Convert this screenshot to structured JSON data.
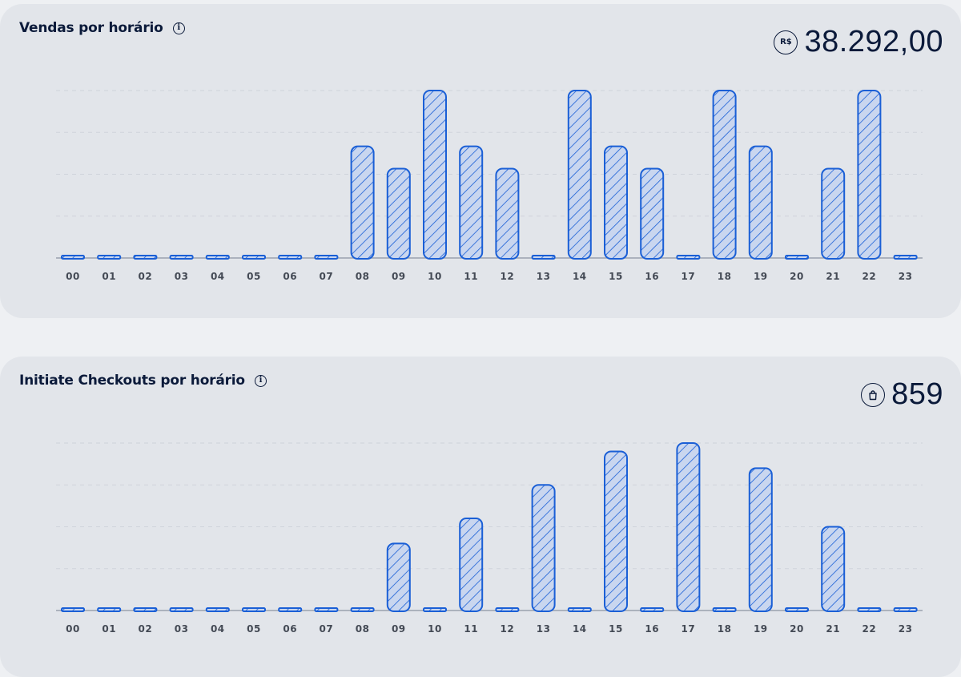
{
  "sales_card": {
    "title": "Vendas por horário",
    "info_icon": "info-icon",
    "currency_icon_label": "R$",
    "total": "38.292,00"
  },
  "checkouts_card": {
    "title": "Initiate Checkouts por horário",
    "info_icon": "info-icon",
    "total_icon": "shopping-bag-icon",
    "total": "859"
  },
  "colors": {
    "bar_stroke": "#1a5fd6",
    "bar_fill": "#c9d6ef",
    "axis": "#9aa2ae",
    "grid": "#cfd4db",
    "text_dark": "#0b1a3a",
    "tick_text": "#444a55"
  },
  "chart_data": [
    {
      "type": "bar",
      "categories": [
        "00",
        "01",
        "02",
        "03",
        "04",
        "05",
        "06",
        "07",
        "08",
        "09",
        "10",
        "11",
        "12",
        "13",
        "14",
        "15",
        "16",
        "17",
        "18",
        "19",
        "20",
        "21",
        "22",
        "23"
      ],
      "values": [
        0,
        0,
        0,
        0,
        0,
        0,
        0,
        0,
        2,
        1.6,
        3,
        2,
        1.6,
        0,
        3,
        2,
        1.6,
        0,
        3,
        2,
        0,
        1.6,
        3,
        0
      ],
      "ylim": [
        0,
        3
      ],
      "grid": true
    },
    {
      "type": "bar",
      "categories": [
        "00",
        "01",
        "02",
        "03",
        "04",
        "05",
        "06",
        "07",
        "08",
        "09",
        "10",
        "11",
        "12",
        "13",
        "14",
        "15",
        "16",
        "17",
        "18",
        "19",
        "20",
        "21",
        "22",
        "23"
      ],
      "values": [
        0,
        0,
        0,
        0,
        0,
        0,
        0,
        0,
        0,
        1.6,
        0,
        2.2,
        0,
        3,
        0,
        3.8,
        0,
        4,
        0,
        3.4,
        0,
        2,
        0,
        0
      ],
      "ylim": [
        0,
        4
      ],
      "grid": true
    }
  ]
}
